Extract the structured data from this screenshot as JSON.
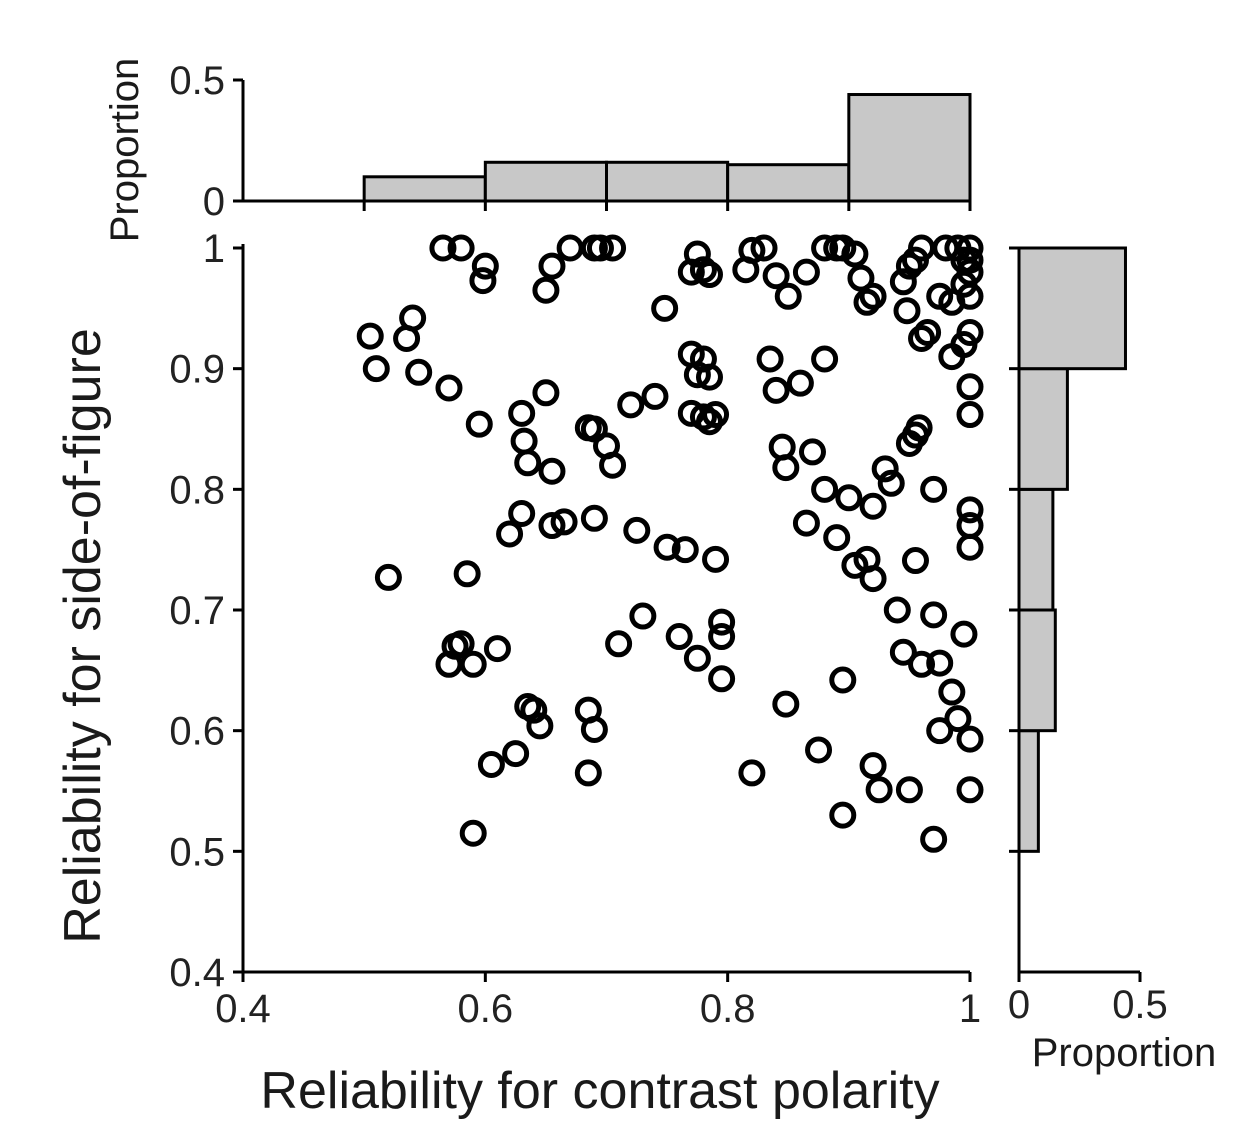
{
  "chart_data": {
    "type": "scatter",
    "xlabel": "Reliability for contrast polarity",
    "ylabel": "Reliability for side-of-figure",
    "xlim": [
      0.4,
      1.0
    ],
    "ylim": [
      0.4,
      1.0
    ],
    "x_ticks": [
      "0.4",
      "0.6",
      "0.8",
      "1"
    ],
    "y_ticks": [
      "0.4",
      "0.5",
      "0.6",
      "0.7",
      "0.8",
      "0.9",
      "1"
    ],
    "marker": "open-circle",
    "points": [
      [
        0.565,
        1.0
      ],
      [
        0.58,
        1.0
      ],
      [
        0.6,
        0.985
      ],
      [
        0.598,
        0.973
      ],
      [
        0.655,
        0.985
      ],
      [
        0.65,
        0.965
      ],
      [
        0.67,
        1.0
      ],
      [
        0.69,
        1.0
      ],
      [
        0.695,
        1.0
      ],
      [
        0.705,
        1.0
      ],
      [
        0.748,
        0.95
      ],
      [
        0.775,
        0.995
      ],
      [
        0.77,
        0.98
      ],
      [
        0.78,
        0.982
      ],
      [
        0.785,
        0.978
      ],
      [
        0.815,
        0.982
      ],
      [
        0.82,
        0.998
      ],
      [
        0.83,
        1.0
      ],
      [
        0.84,
        0.977
      ],
      [
        0.85,
        0.96
      ],
      [
        0.865,
        0.98
      ],
      [
        0.88,
        1.0
      ],
      [
        0.89,
        1.0
      ],
      [
        0.895,
        1.0
      ],
      [
        0.905,
        0.995
      ],
      [
        0.91,
        0.975
      ],
      [
        0.915,
        0.955
      ],
      [
        0.92,
        0.96
      ],
      [
        0.945,
        0.972
      ],
      [
        0.95,
        0.985
      ],
      [
        0.955,
        0.99
      ],
      [
        0.96,
        1.0
      ],
      [
        0.98,
        1.0
      ],
      [
        0.99,
        1.0
      ],
      [
        0.995,
        0.99
      ],
      [
        1.0,
        1.0
      ],
      [
        1.0,
        0.99
      ],
      [
        1.0,
        0.98
      ],
      [
        0.995,
        0.97
      ],
      [
        1.0,
        0.96
      ],
      [
        0.985,
        0.955
      ],
      [
        0.975,
        0.96
      ],
      [
        0.948,
        0.948
      ],
      [
        0.965,
        0.93
      ],
      [
        0.96,
        0.925
      ],
      [
        0.985,
        0.91
      ],
      [
        0.995,
        0.92
      ],
      [
        1.0,
        0.93
      ],
      [
        1.0,
        0.885
      ],
      [
        1.0,
        0.862
      ],
      [
        0.505,
        0.927
      ],
      [
        0.51,
        0.9
      ],
      [
        0.535,
        0.925
      ],
      [
        0.54,
        0.942
      ],
      [
        0.545,
        0.897
      ],
      [
        0.57,
        0.884
      ],
      [
        0.595,
        0.854
      ],
      [
        0.63,
        0.863
      ],
      [
        0.632,
        0.84
      ],
      [
        0.635,
        0.822
      ],
      [
        0.65,
        0.88
      ],
      [
        0.655,
        0.815
      ],
      [
        0.685,
        0.851
      ],
      [
        0.69,
        0.85
      ],
      [
        0.7,
        0.836
      ],
      [
        0.705,
        0.82
      ],
      [
        0.72,
        0.87
      ],
      [
        0.74,
        0.877
      ],
      [
        0.77,
        0.912
      ],
      [
        0.775,
        0.895
      ],
      [
        0.78,
        0.908
      ],
      [
        0.785,
        0.893
      ],
      [
        0.77,
        0.863
      ],
      [
        0.78,
        0.86
      ],
      [
        0.785,
        0.856
      ],
      [
        0.79,
        0.862
      ],
      [
        0.835,
        0.908
      ],
      [
        0.84,
        0.882
      ],
      [
        0.86,
        0.888
      ],
      [
        0.88,
        0.908
      ],
      [
        0.845,
        0.835
      ],
      [
        0.848,
        0.818
      ],
      [
        0.87,
        0.831
      ],
      [
        0.88,
        0.8
      ],
      [
        0.9,
        0.793
      ],
      [
        0.93,
        0.817
      ],
      [
        0.935,
        0.805
      ],
      [
        0.95,
        0.838
      ],
      [
        0.955,
        0.845
      ],
      [
        0.958,
        0.851
      ],
      [
        0.97,
        0.8
      ],
      [
        0.92,
        0.786
      ],
      [
        1.0,
        0.783
      ],
      [
        1.0,
        0.77
      ],
      [
        1.0,
        0.752
      ],
      [
        0.865,
        0.772
      ],
      [
        0.89,
        0.76
      ],
      [
        0.905,
        0.737
      ],
      [
        0.915,
        0.742
      ],
      [
        0.92,
        0.726
      ],
      [
        0.955,
        0.741
      ],
      [
        0.62,
        0.763
      ],
      [
        0.63,
        0.78
      ],
      [
        0.655,
        0.77
      ],
      [
        0.665,
        0.773
      ],
      [
        0.69,
        0.776
      ],
      [
        0.725,
        0.766
      ],
      [
        0.75,
        0.752
      ],
      [
        0.765,
        0.75
      ],
      [
        0.79,
        0.742
      ],
      [
        0.52,
        0.727
      ],
      [
        0.585,
        0.73
      ],
      [
        0.57,
        0.655
      ],
      [
        0.575,
        0.67
      ],
      [
        0.58,
        0.672
      ],
      [
        0.59,
        0.655
      ],
      [
        0.61,
        0.668
      ],
      [
        0.625,
        0.581
      ],
      [
        0.605,
        0.572
      ],
      [
        0.59,
        0.515
      ],
      [
        0.635,
        0.62
      ],
      [
        0.64,
        0.617
      ],
      [
        0.645,
        0.604
      ],
      [
        0.685,
        0.617
      ],
      [
        0.69,
        0.601
      ],
      [
        0.685,
        0.565
      ],
      [
        0.71,
        0.672
      ],
      [
        0.73,
        0.695
      ],
      [
        0.76,
        0.678
      ],
      [
        0.775,
        0.66
      ],
      [
        0.795,
        0.69
      ],
      [
        0.795,
        0.678
      ],
      [
        0.795,
        0.643
      ],
      [
        0.82,
        0.565
      ],
      [
        0.848,
        0.622
      ],
      [
        0.875,
        0.584
      ],
      [
        0.895,
        0.642
      ],
      [
        0.895,
        0.53
      ],
      [
        0.92,
        0.571
      ],
      [
        0.925,
        0.551
      ],
      [
        0.94,
        0.7
      ],
      [
        0.945,
        0.665
      ],
      [
        0.96,
        0.655
      ],
      [
        0.97,
        0.696
      ],
      [
        0.975,
        0.656
      ],
      [
        0.985,
        0.632
      ],
      [
        0.99,
        0.61
      ],
      [
        0.975,
        0.6
      ],
      [
        1.0,
        0.593
      ],
      [
        0.995,
        0.68
      ],
      [
        0.95,
        0.551
      ],
      [
        0.97,
        0.51
      ],
      [
        1.0,
        0.551
      ]
    ],
    "top_histogram": {
      "axis": "x",
      "ylabel": "Proportion",
      "yticks": [
        "0",
        "0.5"
      ],
      "ylim": [
        0,
        0.5
      ],
      "bins": [
        0.4,
        0.5,
        0.6,
        0.7,
        0.8,
        0.9,
        1.0
      ],
      "values": [
        0,
        0.1,
        0.16,
        0.16,
        0.15,
        0.44
      ]
    },
    "right_histogram": {
      "axis": "y",
      "xlabel": "Proportion",
      "xticks": [
        "0",
        "0.5"
      ],
      "xlim": [
        0,
        0.5
      ],
      "bins": [
        0.4,
        0.5,
        0.6,
        0.7,
        0.8,
        0.9,
        1.0
      ],
      "values": [
        0,
        0.08,
        0.15,
        0.14,
        0.2,
        0.44
      ]
    }
  }
}
